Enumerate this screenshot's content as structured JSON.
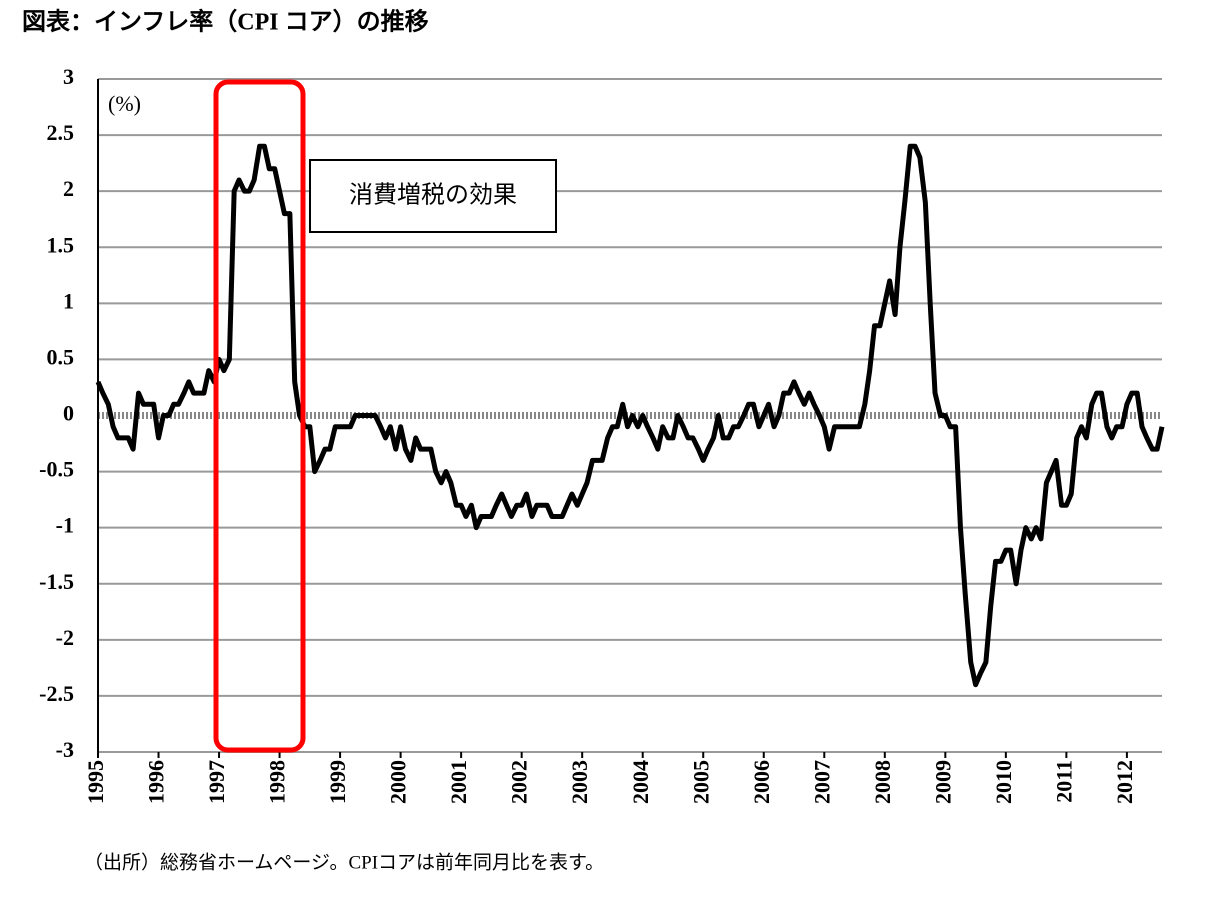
{
  "chart_data": {
    "type": "line",
    "title": "図表：インフレ率（CPI コア）の推移",
    "y_unit": "(%)",
    "annotation": "消費増税の効果",
    "source": "（出所）総務省ホームページ。CPIコアは前年同月比を表す。",
    "x": [
      1995,
      1995.08,
      1995.17,
      1995.25,
      1995.33,
      1995.42,
      1995.5,
      1995.58,
      1995.67,
      1995.75,
      1995.83,
      1995.92,
      1996,
      1996.08,
      1996.17,
      1996.25,
      1996.33,
      1996.42,
      1996.5,
      1996.58,
      1996.67,
      1996.75,
      1996.83,
      1996.92,
      1997,
      1997.08,
      1997.17,
      1997.25,
      1997.33,
      1997.42,
      1997.5,
      1997.58,
      1997.67,
      1997.75,
      1997.83,
      1997.92,
      1998,
      1998.08,
      1998.17,
      1998.25,
      1998.33,
      1998.42,
      1998.5,
      1998.58,
      1998.67,
      1998.75,
      1998.83,
      1998.92,
      1999,
      1999.08,
      1999.17,
      1999.25,
      1999.33,
      1999.42,
      1999.5,
      1999.58,
      1999.67,
      1999.75,
      1999.83,
      1999.92,
      2000,
      2000.08,
      2000.17,
      2000.25,
      2000.33,
      2000.42,
      2000.5,
      2000.58,
      2000.67,
      2000.75,
      2000.83,
      2000.92,
      2001,
      2001.08,
      2001.17,
      2001.25,
      2001.33,
      2001.42,
      2001.5,
      2001.58,
      2001.67,
      2001.75,
      2001.83,
      2001.92,
      2002,
      2002.08,
      2002.17,
      2002.25,
      2002.33,
      2002.42,
      2002.5,
      2002.58,
      2002.67,
      2002.75,
      2002.83,
      2002.92,
      2003,
      2003.08,
      2003.17,
      2003.25,
      2003.33,
      2003.42,
      2003.5,
      2003.58,
      2003.67,
      2003.75,
      2003.83,
      2003.92,
      2004,
      2004.08,
      2004.17,
      2004.25,
      2004.33,
      2004.42,
      2004.5,
      2004.58,
      2004.67,
      2004.75,
      2004.83,
      2004.92,
      2005,
      2005.08,
      2005.17,
      2005.25,
      2005.33,
      2005.42,
      2005.5,
      2005.58,
      2005.67,
      2005.75,
      2005.83,
      2005.92,
      2006,
      2006.08,
      2006.17,
      2006.25,
      2006.33,
      2006.42,
      2006.5,
      2006.58,
      2006.67,
      2006.75,
      2006.83,
      2006.92,
      2007,
      2007.08,
      2007.17,
      2007.25,
      2007.33,
      2007.42,
      2007.5,
      2007.58,
      2007.67,
      2007.75,
      2007.83,
      2007.92,
      2008,
      2008.08,
      2008.17,
      2008.25,
      2008.33,
      2008.42,
      2008.5,
      2008.58,
      2008.67,
      2008.75,
      2008.83,
      2008.92,
      2009,
      2009.08,
      2009.17,
      2009.25,
      2009.33,
      2009.42,
      2009.5,
      2009.58,
      2009.67,
      2009.75,
      2009.83,
      2009.92,
      2010,
      2010.08,
      2010.17,
      2010.25,
      2010.33,
      2010.42,
      2010.5,
      2010.58,
      2010.67,
      2010.75,
      2010.83,
      2010.92,
      2011,
      2011.08,
      2011.17,
      2011.25,
      2011.33,
      2011.42,
      2011.5,
      2011.58,
      2011.67,
      2011.75,
      2011.83,
      2011.92,
      2012,
      2012.08,
      2012.17,
      2012.25,
      2012.33,
      2012.42,
      2012.5,
      2012.58
    ],
    "series": [
      {
        "color": "#000000",
        "values": [
          0.3,
          0.2,
          0.1,
          -0.1,
          -0.2,
          -0.2,
          -0.2,
          -0.3,
          0.2,
          0.1,
          0.1,
          0.1,
          -0.2,
          0,
          0,
          0.1,
          0.1,
          0.2,
          0.3,
          0.2,
          0.2,
          0.2,
          0.4,
          0.3,
          0.5,
          0.4,
          0.5,
          2.0,
          2.1,
          2.0,
          2.0,
          2.1,
          2.4,
          2.4,
          2.2,
          2.2,
          2.0,
          1.8,
          1.8,
          0.3,
          0.0,
          -0.1,
          -0.1,
          -0.5,
          -0.4,
          -0.3,
          -0.3,
          -0.1,
          -0.1,
          -0.1,
          -0.1,
          0,
          0,
          0,
          0,
          0,
          -0.1,
          -0.2,
          -0.1,
          -0.3,
          -0.1,
          -0.3,
          -0.4,
          -0.2,
          -0.3,
          -0.3,
          -0.3,
          -0.5,
          -0.6,
          -0.5,
          -0.6,
          -0.8,
          -0.8,
          -0.9,
          -0.8,
          -1.0,
          -0.9,
          -0.9,
          -0.9,
          -0.8,
          -0.7,
          -0.8,
          -0.9,
          -0.8,
          -0.8,
          -0.7,
          -0.9,
          -0.8,
          -0.8,
          -0.8,
          -0.9,
          -0.9,
          -0.9,
          -0.8,
          -0.7,
          -0.8,
          -0.7,
          -0.6,
          -0.4,
          -0.4,
          -0.4,
          -0.2,
          -0.1,
          -0.1,
          0.1,
          -0.1,
          0,
          -0.1,
          0,
          -0.1,
          -0.2,
          -0.3,
          -0.1,
          -0.2,
          -0.2,
          0,
          -0.1,
          -0.2,
          -0.2,
          -0.3,
          -0.4,
          -0.3,
          -0.2,
          0,
          -0.2,
          -0.2,
          -0.1,
          -0.1,
          0,
          0.1,
          0.1,
          -0.1,
          0,
          0.1,
          -0.1,
          0,
          0.2,
          0.2,
          0.3,
          0.2,
          0.1,
          0.2,
          0.1,
          0,
          -0.1,
          -0.3,
          -0.1,
          -0.1,
          -0.1,
          -0.1,
          -0.1,
          -0.1,
          0.1,
          0.4,
          0.8,
          0.8,
          1.0,
          1.2,
          0.9,
          1.5,
          1.9,
          2.4,
          2.4,
          2.3,
          1.9,
          1.0,
          0.2,
          0,
          0,
          -0.1,
          -0.1,
          -1.0,
          -1.6,
          -2.2,
          -2.4,
          -2.3,
          -2.2,
          -1.7,
          -1.3,
          -1.3,
          -1.2,
          -1.2,
          -1.5,
          -1.2,
          -1.0,
          -1.1,
          -1.0,
          -1.1,
          -0.6,
          -0.5,
          -0.4,
          -0.8,
          -0.8,
          -0.7,
          -0.2,
          -0.1,
          -0.2,
          0.1,
          0.2,
          0.2,
          -0.1,
          -0.2,
          -0.1,
          -0.1,
          0.1,
          0.2,
          0.2,
          -0.1,
          -0.2,
          -0.3,
          -0.3,
          -0.1
        ]
      }
    ],
    "xlim": [
      1995,
      2012.58
    ],
    "xticks": [
      1995,
      1996,
      1997,
      1998,
      1999,
      2000,
      2001,
      2002,
      2003,
      2004,
      2005,
      2006,
      2007,
      2008,
      2009,
      2010,
      2011,
      2012
    ],
    "ylim": [
      -3,
      3
    ],
    "yticks": [
      -3,
      -2.5,
      -2,
      -1.5,
      -1,
      -0.5,
      0,
      0.5,
      1,
      1.5,
      2,
      2.5,
      3
    ],
    "grid": true
  }
}
